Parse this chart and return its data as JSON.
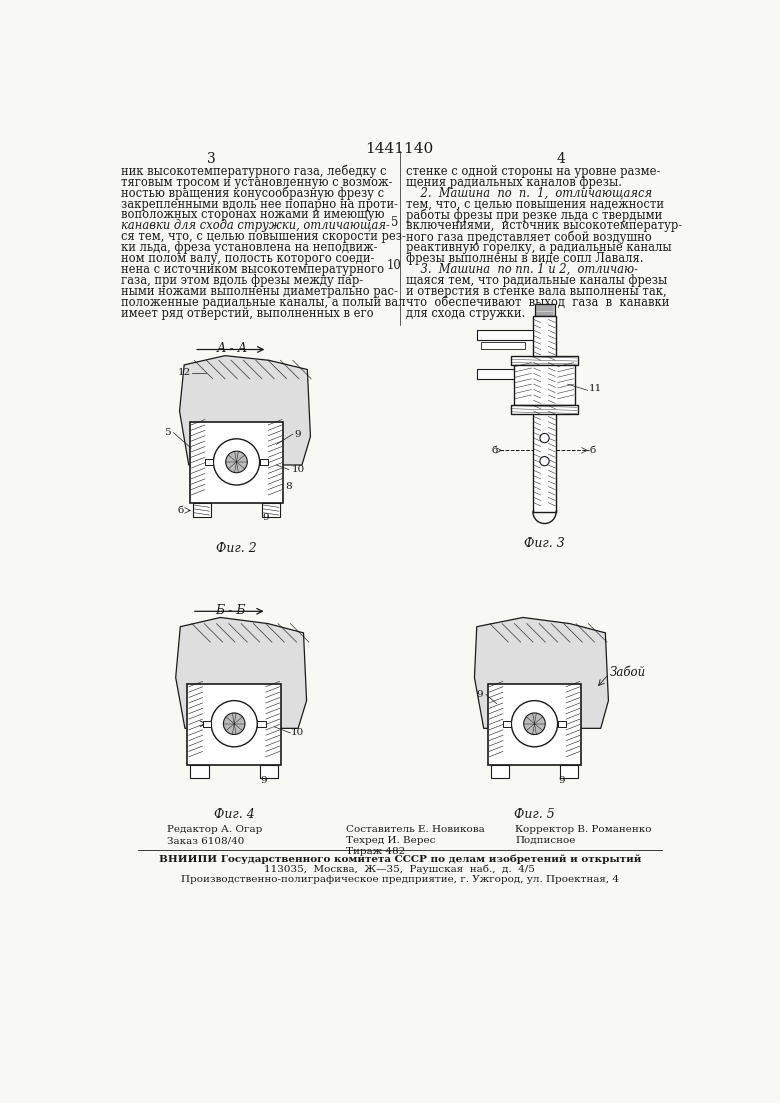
{
  "page_number": "1441140",
  "col_left": "3",
  "col_right": "4",
  "background_color": "#f8f8f5",
  "text_color": "#1a1a1a",
  "line_color": "#1a1a1a",
  "text_left": "ник высокотемпературного газа, лебедку с\nтяговым тросом и установленную с возмож-\nностью вращения конусообразную фрезу с\nзакрепленными вдоль нее попарно на проти-\nвоположных сторонах ножами и имеющую\nканавки для схода стружки, отличающая-\nся тем, что, с целью повышения скорости рез-\nки льда, фреза установлена на неподвиж-\nном полом валу, полость которого соеди-\nнена с источником высокотемпературного\nгаза, при этом вдоль фрезы между пар-\nными ножами выполнены диаметрально рас-\nположенные радиальные каналы, а полый вал\nимеет ряд отверстий, выполненных в его",
  "text_right": "стенке с одной стороны на уровне разме-\nщения радиальных каналов фрезы.\n    2.  Машина  по  п.  1,  отличающаяся\nтем, что, с целью повышения надежности\nработы фрезы при резке льда с твердыми\nвключениями,  источник высокотемператур-\nного газа представляет собой воздушно\nреактивную горелку, а радиальные каналы\nфрезы выполнены в виде сопл Лаваля.\n    3.  Машина  по пп. 1 и 2,  отличаю-\nщаяся тем, что радиальные каналы фрезы\nи отверстия в стенке вала выполнены так,\nчто  обеспечивают  выход  газа  в  канавки\nдля схода стружки.",
  "line_number_5": "5",
  "line_number_10": "10",
  "fig2_label": "Фиг. 2",
  "fig3_label": "Фиг. 3",
  "fig4_label": "Фиг. 4",
  "fig5_label": "Фиг. 5",
  "section_aa": "А - А",
  "section_bb": "Б - Б",
  "zaboi_label": "Забой",
  "footer_line1_left": "Редактор А. Огар",
  "footer_line1_center": "Составитель Е. Новикова",
  "footer_line1_right": "Корректор В. Романенко",
  "footer_line2_left": "Заказ 6108/40",
  "footer_line2_center": "Техред И. Верес",
  "footer_line2_right": "Подписное",
  "footer_line3_left": "Тираж 482",
  "footer_vniipи": "ВНИИПИ Государственного комитета СССР по делам изобретений и открытий",
  "footer_address": "113035,  Москва,  Ж—35,  Раушская  наб.,  д.  4/5",
  "footer_factory": "Производственно-полиграфическое предприятие, г. Ужгород, ул. Проектная, 4"
}
